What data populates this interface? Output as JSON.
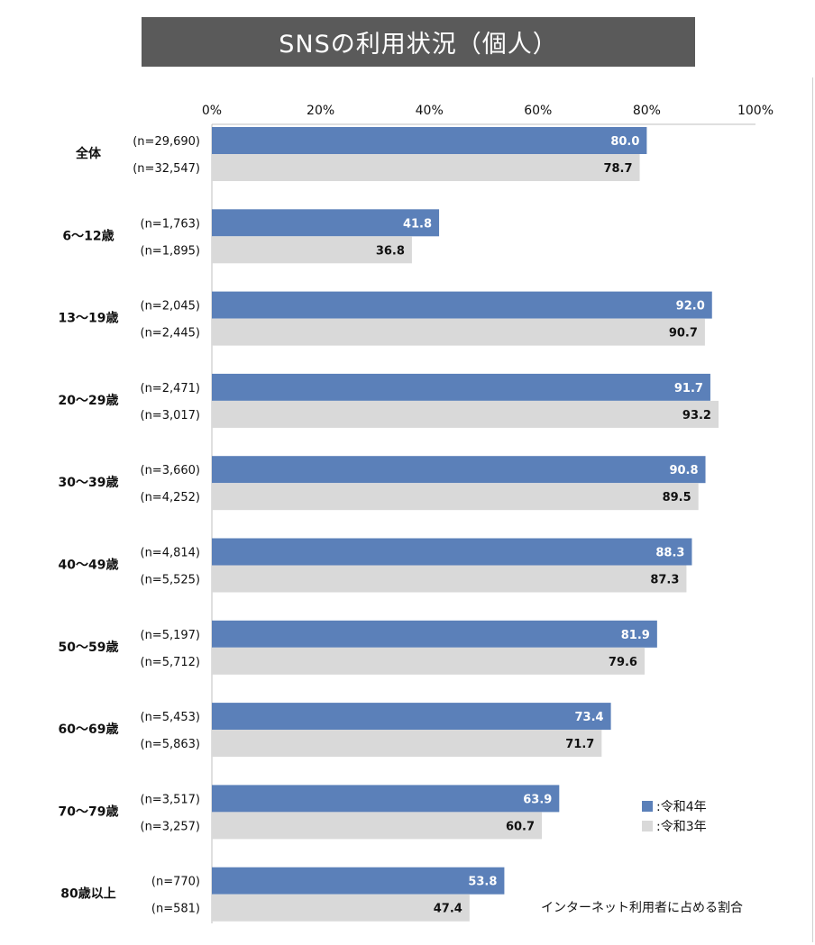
{
  "title": "SNSの利用状況（個人）",
  "colors": {
    "current": "#5b80b9",
    "previous": "#d9d9d9",
    "title_bg": "#5a5a5a"
  },
  "legend": [
    {
      "marker": "■",
      "label": ":令和4年",
      "color": "#5b80b9"
    },
    {
      "marker": "■",
      "label": ":令和3年",
      "color": "#d9d9d9"
    }
  ],
  "note": "インターネット利用者に占める割合",
  "chart_data": {
    "type": "bar",
    "orientation": "horizontal",
    "title": "SNSの利用状況（個人）",
    "xlim": [
      0,
      100
    ],
    "x_ticks": [
      "0%",
      "20%",
      "40%",
      "60%",
      "80%",
      "100%"
    ],
    "x_tick_values": [
      0,
      20,
      40,
      60,
      80,
      100
    ],
    "grid": false,
    "legend_position": "bottom-right",
    "categories": [
      "全体",
      "6～12歳",
      "13～19歳",
      "20～29歳",
      "30～39歳",
      "40～49歳",
      "50～59歳",
      "60～69歳",
      "70～79歳",
      "80歳以上"
    ],
    "series": [
      {
        "name": "令和4年",
        "color": "#5b80b9",
        "values": [
          80.0,
          41.8,
          92.0,
          91.7,
          90.8,
          88.3,
          81.9,
          73.4,
          63.9,
          53.8
        ],
        "labels": [
          "80.0",
          "41.8",
          "92.0",
          "91.7",
          "90.8",
          "88.3",
          "81.9",
          "73.4",
          "63.9",
          "53.8"
        ],
        "n_labels": [
          "(n=29,690)",
          "(n=1,763)",
          "(n=2,045)",
          "(n=2,471)",
          "(n=3,660)",
          "(n=4,814)",
          "(n=5,197)",
          "(n=5,453)",
          "(n=3,517)",
          "(n=770)"
        ]
      },
      {
        "name": "令和3年",
        "color": "#d9d9d9",
        "values": [
          78.7,
          36.8,
          90.7,
          93.2,
          89.5,
          87.3,
          79.6,
          71.7,
          60.7,
          47.4
        ],
        "labels": [
          "78.7",
          "36.8",
          "90.7",
          "93.2",
          "89.5",
          "87.3",
          "79.6",
          "71.7",
          "60.7",
          "47.4"
        ],
        "n_labels": [
          "(n=32,547)",
          "(n=1,895)",
          "(n=2,445)",
          "(n=3,017)",
          "(n=4,252)",
          "(n=5,525)",
          "(n=5,712)",
          "(n=5,863)",
          "(n=3,257)",
          "(n=581)"
        ]
      }
    ]
  }
}
